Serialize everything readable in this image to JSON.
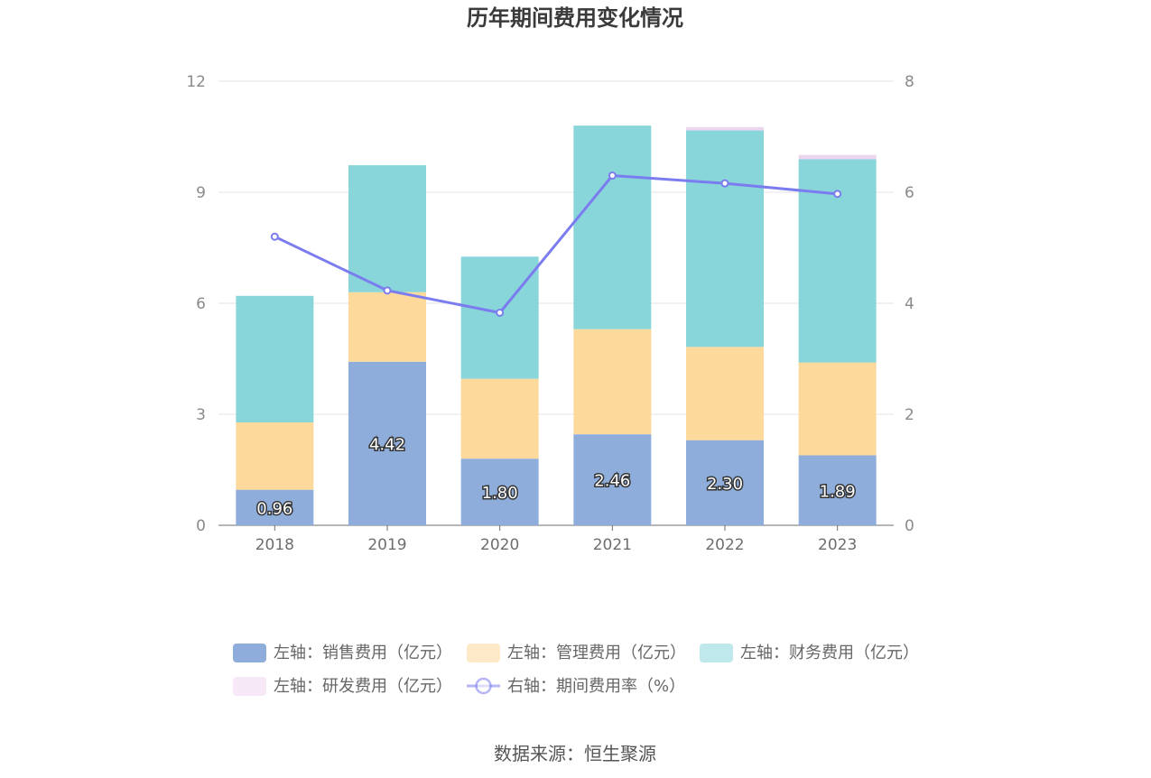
{
  "chart_data": {
    "type": "bar",
    "stacked": true,
    "title": "历年期间费用变化情况",
    "categories": [
      "2018",
      "2019",
      "2020",
      "2021",
      "2022",
      "2023"
    ],
    "left_axis": {
      "ylim": [
        0,
        12
      ],
      "ticks": [
        "0",
        "3",
        "6",
        "9",
        "12"
      ]
    },
    "right_axis": {
      "ylim": [
        0,
        8
      ],
      "ticks": [
        "0",
        "2",
        "4",
        "6",
        "8"
      ]
    },
    "series": [
      {
        "name": "左轴：销售费用（亿元）",
        "type": "bar",
        "axis": "left",
        "color": "#8eaddb",
        "values": [
          0.96,
          4.42,
          1.8,
          2.46,
          2.3,
          1.89
        ],
        "labels": [
          "0.96",
          "4.42",
          "1.80",
          "2.46",
          "2.30",
          "1.89"
        ]
      },
      {
        "name": "左轴：管理费用（亿元）",
        "type": "bar",
        "axis": "left",
        "color": "#fdd99b",
        "values": [
          1.82,
          1.88,
          2.16,
          2.84,
          2.52,
          2.51
        ]
      },
      {
        "name": "左轴：财务费用（亿元）",
        "type": "bar",
        "axis": "left",
        "color": "#88d5da",
        "values": [
          3.42,
          3.43,
          3.3,
          5.5,
          5.85,
          5.49
        ]
      },
      {
        "name": "左轴：研发费用（亿元）",
        "type": "bar",
        "axis": "left",
        "color": "#eed5ee",
        "values": [
          0,
          0,
          0,
          0,
          0.09,
          0.12
        ]
      },
      {
        "name": "右轴：期间费用率（%）",
        "type": "line",
        "axis": "right",
        "color": "#7b7cef",
        "values": [
          5.2,
          4.23,
          3.83,
          6.3,
          6.16,
          5.97
        ]
      }
    ],
    "legend_position": "bottom",
    "grid": true
  },
  "source": "数据来源：恒生聚源"
}
